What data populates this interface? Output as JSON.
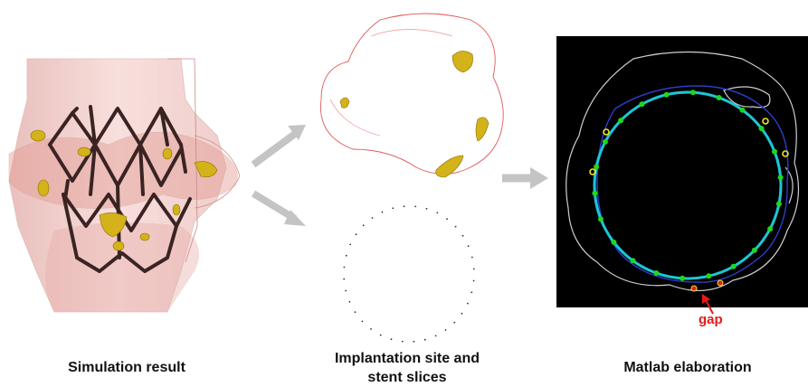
{
  "panels": {
    "simulation": {
      "caption": "Simulation result"
    },
    "implantation": {
      "caption_line1": "Implantation site and",
      "caption_line2": "stent slices"
    },
    "matlab": {
      "caption": "Matlab elaboration",
      "gap_label": "gap"
    }
  },
  "colors": {
    "tissue": "#e9b1ad",
    "stent": "#3a2423",
    "calcification": "#d4b21a",
    "contour": "#e05a5a",
    "matlab_background": "#000000",
    "stent_circle": "#1cc7d6",
    "stent_node": "#1ed81e",
    "gap_marker": "#e41a1a",
    "arrow": "#c4c4c4"
  }
}
